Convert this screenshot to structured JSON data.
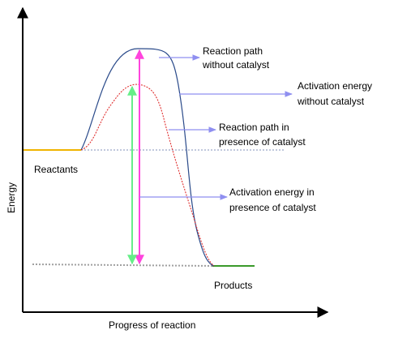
{
  "axes": {
    "x_label": "Progress of reaction",
    "y_label": "Energy"
  },
  "labels": {
    "reactants": "Reactants",
    "products": "Products",
    "path_without_l1": "Reaction path",
    "path_without_l2": "without catalyst",
    "ea_without_l1": "Activation energy",
    "ea_without_l2": "without catalyst",
    "path_with_l1": "Reaction path in",
    "path_with_l2": "presence of catalyst",
    "ea_with_l1": "Activation energy in",
    "ea_with_l2": "presence of catalyst"
  },
  "colors": {
    "axis": "#000000",
    "reactant_level": "#f0b400",
    "product_level": "#3a9a2a",
    "dotted_level": "#9aa7c8",
    "curve_without_catalyst": "#2a4a8a",
    "curve_with_catalyst": "#e03030",
    "arrow_without_catalyst": "#ff44dd",
    "arrow_with_catalyst": "#66ee88",
    "pointer": "#8f8ff0"
  }
}
